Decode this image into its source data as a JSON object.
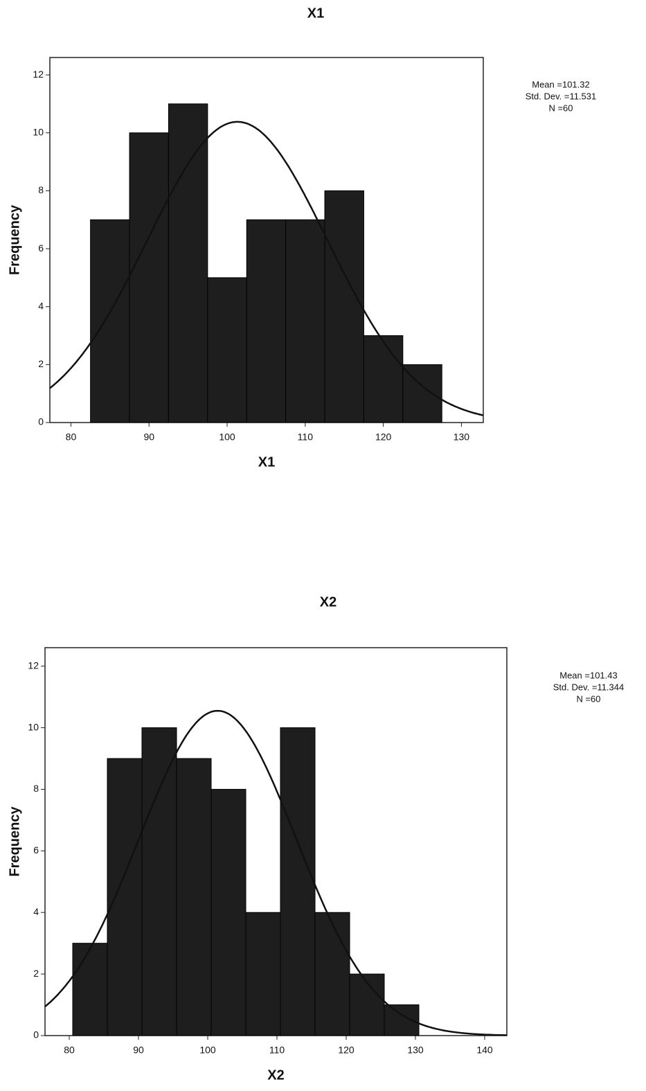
{
  "chart_data": [
    {
      "type": "histogram",
      "title": "X1",
      "x_label": "X1",
      "y_label": "Frequency",
      "bins": [
        82.5,
        87.5,
        92.5,
        97.5,
        102.5,
        107.5,
        112.5,
        117.5,
        122.5,
        127.5
      ],
      "values": [
        7,
        10,
        11,
        5,
        7,
        7,
        8,
        3,
        2
      ],
      "color": "#1e1e1e",
      "xlim": [
        77.3,
        132.8
      ],
      "xticks": [
        80,
        90,
        100,
        110,
        120,
        130
      ],
      "ylim": [
        0,
        12.6
      ],
      "yticks": [
        0,
        2,
        4,
        6,
        8,
        10,
        12
      ],
      "grid": false,
      "stats": [
        {
          "value": 101.32,
          "label": "Mean =101.32"
        },
        {
          "value": 11.531,
          "label": "Std. Dev. =11.531"
        },
        {
          "value": 60,
          "label": "N =60"
        }
      ]
    },
    {
      "type": "histogram",
      "title": "X2",
      "x_label": "X2",
      "y_label": "Frequency",
      "bins": [
        80.5,
        85.5,
        90.5,
        95.5,
        100.5,
        105.5,
        110.5,
        115.5,
        120.5,
        125.5,
        130.5
      ],
      "values": [
        3,
        9,
        10,
        9,
        8,
        4,
        10,
        4,
        2,
        1
      ],
      "color": "#1e1e1e",
      "xlim": [
        76.5,
        143.2
      ],
      "xticks": [
        80,
        90,
        100,
        110,
        120,
        130,
        140
      ],
      "ylim": [
        0,
        12.6
      ],
      "yticks": [
        0,
        2,
        4,
        6,
        8,
        10,
        12
      ],
      "grid": false,
      "stats": [
        {
          "value": 101.43,
          "label": "Mean =101.43"
        },
        {
          "value": 11.344,
          "label": "Std. Dev. =11.344"
        },
        {
          "value": 60,
          "label": "N =60"
        }
      ]
    }
  ]
}
